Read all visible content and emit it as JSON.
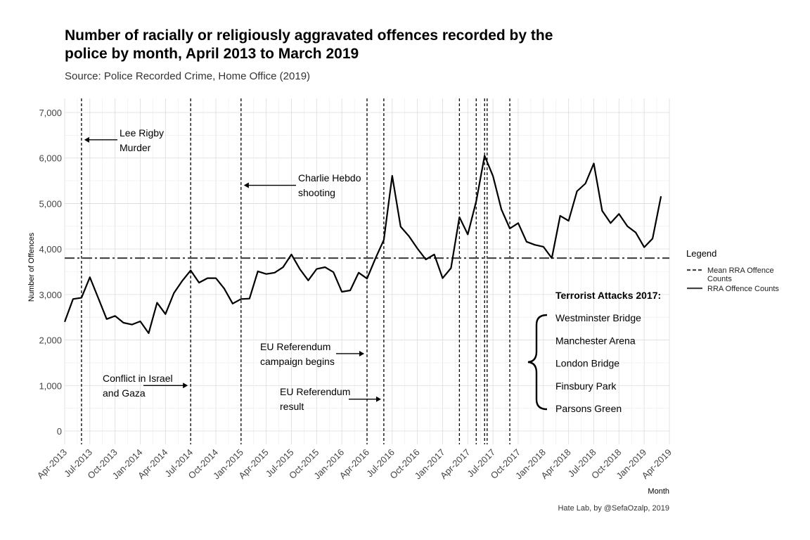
{
  "chart_data": {
    "type": "line",
    "title_lines": [
      "Number of racially or religiously aggravated offences recorded by the",
      "police by month, April 2013 to March 2019"
    ],
    "subtitle": "Source: Police Recorded Crime, Home Office (2019)",
    "xlabel": "Month",
    "ylabel": "Number of Offences",
    "caption": "Hate Lab, by @SefaOzalp, 2019",
    "ylim": [
      0,
      7000
    ],
    "yticks": [
      0,
      1000,
      2000,
      3000,
      4000,
      5000,
      6000,
      7000
    ],
    "ytick_labels": [
      "0",
      "1,000",
      "2,000",
      "3,000",
      "4,000",
      "5,000",
      "6,000",
      "7,000"
    ],
    "xlim": [
      "2013-04",
      "2019-04"
    ],
    "xticks": [
      "Apr-2013",
      "Jul-2013",
      "Oct-2013",
      "Jan-2014",
      "Apr-2014",
      "Jul-2014",
      "Oct-2014",
      "Jan-2015",
      "Apr-2015",
      "Jul-2015",
      "Oct-2015",
      "Jan-2016",
      "Apr-2016",
      "Jul-2016",
      "Oct-2016",
      "Jan-2017",
      "Apr-2017",
      "Jul-2017",
      "Oct-2017",
      "Jan-2018",
      "Apr-2018",
      "Jul-2018",
      "Oct-2018",
      "Jan-2019",
      "Apr-2019"
    ],
    "grid": true,
    "series": [
      {
        "name": "RRA Offence Counts",
        "color": "#000000",
        "x": [
          "2013-04",
          "2013-05",
          "2013-06",
          "2013-07",
          "2013-08",
          "2013-09",
          "2013-10",
          "2013-11",
          "2013-12",
          "2014-01",
          "2014-02",
          "2014-03",
          "2014-04",
          "2014-05",
          "2014-06",
          "2014-07",
          "2014-08",
          "2014-09",
          "2014-10",
          "2014-11",
          "2014-12",
          "2015-01",
          "2015-02",
          "2015-03",
          "2015-04",
          "2015-05",
          "2015-06",
          "2015-07",
          "2015-08",
          "2015-09",
          "2015-10",
          "2015-11",
          "2015-12",
          "2016-01",
          "2016-02",
          "2016-03",
          "2016-04",
          "2016-05",
          "2016-06",
          "2016-07",
          "2016-08",
          "2016-09",
          "2016-10",
          "2016-11",
          "2016-12",
          "2017-01",
          "2017-02",
          "2017-03",
          "2017-04",
          "2017-05",
          "2017-06",
          "2017-07",
          "2017-08",
          "2017-09",
          "2017-10",
          "2017-11",
          "2017-12",
          "2018-01",
          "2018-02",
          "2018-03",
          "2018-04",
          "2018-05",
          "2018-06",
          "2018-07",
          "2018-08",
          "2018-09",
          "2018-10",
          "2018-11",
          "2018-12",
          "2019-01",
          "2019-02",
          "2019-03"
        ],
        "values": [
          2400,
          2900,
          2930,
          3380,
          2920,
          2460,
          2530,
          2380,
          2340,
          2410,
          2150,
          2820,
          2570,
          3030,
          3300,
          3530,
          3260,
          3360,
          3360,
          3130,
          2800,
          2900,
          2910,
          3510,
          3450,
          3480,
          3600,
          3880,
          3560,
          3310,
          3560,
          3600,
          3490,
          3060,
          3090,
          3480,
          3350,
          3790,
          4200,
          5610,
          4490,
          4280,
          4010,
          3770,
          3880,
          3360,
          3580,
          4700,
          4320,
          5050,
          6050,
          5600,
          4870,
          4450,
          4570,
          4160,
          4090,
          4050,
          3800,
          4730,
          4620,
          5270,
          5440,
          5880,
          4840,
          4570,
          4770,
          4500,
          4360,
          4040,
          4230,
          5160
        ]
      },
      {
        "name": "Mean RRA Offence Counts",
        "color": "#444444",
        "value": 3800
      }
    ],
    "event_lines": [
      "2013-06",
      "2014-07",
      "2015-01",
      "2016-04",
      "2016-06",
      "2017-03",
      "2017-05",
      "2017-06",
      "2017-06",
      "2017-09"
    ],
    "annotations": [
      {
        "lines": [
          "Lee Rigby",
          "Murder"
        ],
        "target_x": "2013-06",
        "target_y": 6400
      },
      {
        "lines": [
          "Charlie Hebdo",
          "shooting"
        ],
        "target_x": "2015-01",
        "target_y": 5400
      },
      {
        "lines": [
          "EU Referendum",
          "campaign begins"
        ],
        "target_x": "2016-04",
        "target_y": 1700
      },
      {
        "lines": [
          "Conflict in Israel",
          "and Gaza"
        ],
        "target_x": "2014-07",
        "target_y": 1000
      },
      {
        "lines": [
          "EU Referendum",
          "result"
        ],
        "target_x": "2016-06",
        "target_y": 700
      }
    ],
    "terrorist_attacks": {
      "title": "Terrorist Attacks 2017:",
      "items": [
        "Westminster Bridge",
        "Manchester Arena",
        "London Bridge",
        "Finsbury Park",
        "Parsons Green"
      ]
    },
    "legend": {
      "title": "Legend",
      "placement": "right",
      "entries": [
        {
          "label_lines": [
            "Mean RRA Offence",
            "Counts"
          ],
          "style": "dashed"
        },
        {
          "label_lines": [
            "RRA Offence Counts"
          ],
          "style": "solid"
        }
      ]
    }
  }
}
